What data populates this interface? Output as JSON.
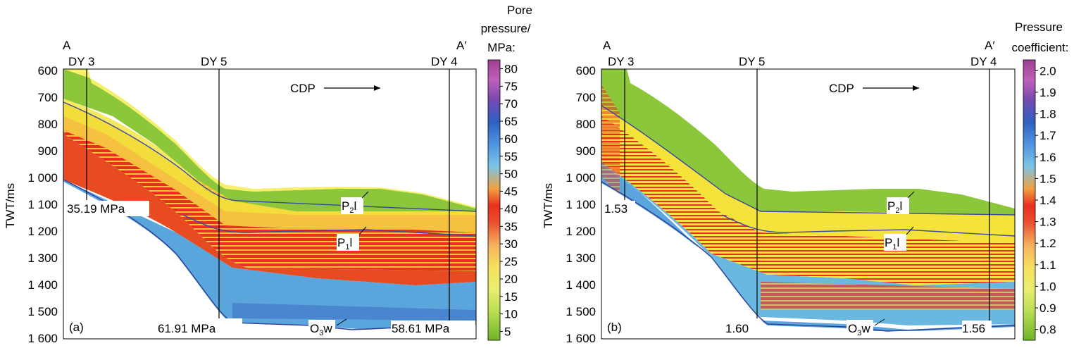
{
  "y_axis": {
    "label": "TWT/ms",
    "ticks": [
      "600",
      "700",
      "800",
      "900",
      "1 000",
      "1 100",
      "1 200",
      "1 300",
      "1 400",
      "1 500",
      "1 600"
    ]
  },
  "cdp_label": "CDP",
  "section_start": "A",
  "section_end": "A′",
  "horizons": {
    "p2l": {
      "main": "P",
      "sub": "2",
      "tail": "l"
    },
    "p1l": {
      "main": "P",
      "sub": "1",
      "tail": "l"
    },
    "o3w": {
      "main": "O",
      "sub": "3",
      "tail": "w"
    }
  },
  "panels": [
    {
      "id": "a",
      "tag": "(a)",
      "colorbar_title": [
        "Pore",
        "pressure/",
        "MPa:"
      ],
      "colorbar_ticks": [
        "80",
        "75",
        "70",
        "65",
        "60",
        "55",
        "50",
        "45",
        "40",
        "35",
        "30",
        "25",
        "20",
        "15",
        "10",
        "5"
      ],
      "wells": [
        {
          "name": "DY 3",
          "value": "35.19 MPa"
        },
        {
          "name": "DY 5",
          "value": "61.91 MPa"
        },
        {
          "name": "DY 4",
          "value": "58.61 MPa"
        }
      ]
    },
    {
      "id": "b",
      "tag": "(b)",
      "colorbar_title": [
        "Pressure",
        "coefficient:"
      ],
      "colorbar_ticks": [
        "2.0",
        "1.9",
        "1.8",
        "1.7",
        "1.6",
        "1.5",
        "1.4",
        "1.3",
        "1.2",
        "1.1",
        "1.0",
        "0.9",
        "0.8"
      ],
      "wells": [
        {
          "name": "DY 3",
          "value": "1.53"
        },
        {
          "name": "DY 5",
          "value": "1.60"
        },
        {
          "name": "DY 4",
          "value": "1.56"
        }
      ]
    }
  ],
  "colors": {
    "green": "#7dbf2e",
    "light_green": "#b7d84a",
    "yellow": "#f3e63a",
    "orange": "#f59a2a",
    "red": "#e02a1a",
    "cyan": "#6cc6dc",
    "blue": "#5a9fe0",
    "dark_blue": "#2f6bc4",
    "purple": "#8a3fa0"
  }
}
